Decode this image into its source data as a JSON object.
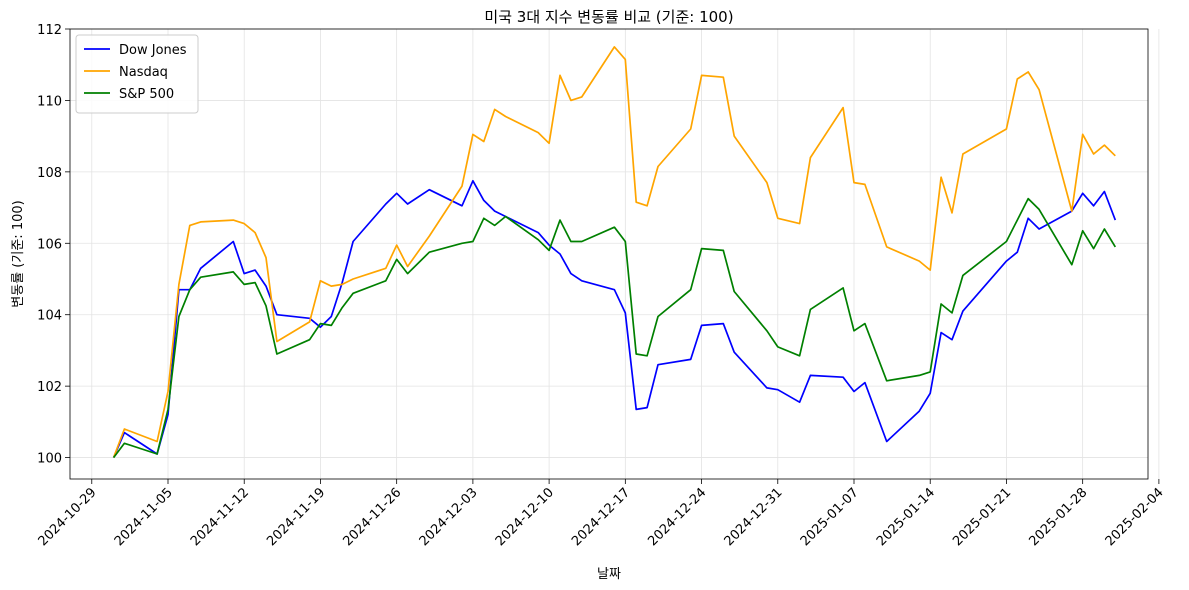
{
  "chart_data": {
    "type": "line",
    "title": "미국 3대 지수 변동률 비교 (기준: 100)",
    "xlabel": "날짜",
    "ylabel": "변동률 (기준: 100)",
    "xlim": [
      "2024-10-27",
      "2025-02-03"
    ],
    "ylim": [
      99.4,
      112
    ],
    "grid": true,
    "legend_position": "top-left",
    "x_ticks": [
      "2024-10-29",
      "2024-11-05",
      "2024-11-12",
      "2024-11-19",
      "2024-11-26",
      "2024-12-03",
      "2024-12-10",
      "2024-12-17",
      "2024-12-24",
      "2024-12-31",
      "2025-01-07",
      "2025-01-14",
      "2025-01-21",
      "2025-01-28",
      "2025-02-04"
    ],
    "y_ticks": [
      100,
      102,
      104,
      106,
      108,
      110,
      112
    ],
    "series": [
      {
        "name": "Dow Jones",
        "color": "#0000ff",
        "points": [
          [
            "2024-10-31",
            100.0
          ],
          [
            "2024-11-01",
            100.7
          ],
          [
            "2024-11-04",
            100.1
          ],
          [
            "2024-11-05",
            101.2
          ],
          [
            "2024-11-06",
            104.7
          ],
          [
            "2024-11-07",
            104.7
          ],
          [
            "2024-11-08",
            105.3
          ],
          [
            "2024-11-11",
            106.05
          ],
          [
            "2024-11-12",
            105.15
          ],
          [
            "2024-11-13",
            105.25
          ],
          [
            "2024-11-14",
            104.8
          ],
          [
            "2024-11-15",
            104.0
          ],
          [
            "2024-11-18",
            103.9
          ],
          [
            "2024-11-19",
            103.65
          ],
          [
            "2024-11-20",
            103.95
          ],
          [
            "2024-11-21",
            104.9
          ],
          [
            "2024-11-22",
            106.05
          ],
          [
            "2024-11-25",
            107.1
          ],
          [
            "2024-11-26",
            107.4
          ],
          [
            "2024-11-27",
            107.1
          ],
          [
            "2024-11-29",
            107.5
          ],
          [
            "2024-12-02",
            107.05
          ],
          [
            "2024-12-03",
            107.75
          ],
          [
            "2024-12-04",
            107.2
          ],
          [
            "2024-12-05",
            106.9
          ],
          [
            "2024-12-06",
            106.75
          ],
          [
            "2024-12-09",
            106.3
          ],
          [
            "2024-12-10",
            105.95
          ],
          [
            "2024-12-11",
            105.7
          ],
          [
            "2024-12-12",
            105.15
          ],
          [
            "2024-12-13",
            104.95
          ],
          [
            "2024-12-16",
            104.7
          ],
          [
            "2024-12-17",
            104.05
          ],
          [
            "2024-12-18",
            101.35
          ],
          [
            "2024-12-19",
            101.4
          ],
          [
            "2024-12-20",
            102.6
          ],
          [
            "2024-12-23",
            102.75
          ],
          [
            "2024-12-24",
            103.7
          ],
          [
            "2024-12-26",
            103.75
          ],
          [
            "2024-12-27",
            102.95
          ],
          [
            "2024-12-30",
            101.95
          ],
          [
            "2024-12-31",
            101.9
          ],
          [
            "2025-01-02",
            101.55
          ],
          [
            "2025-01-03",
            102.3
          ],
          [
            "2025-01-06",
            102.25
          ],
          [
            "2025-01-07",
            101.85
          ],
          [
            "2025-01-08",
            102.1
          ],
          [
            "2025-01-10",
            100.45
          ],
          [
            "2025-01-13",
            101.3
          ],
          [
            "2025-01-14",
            101.8
          ],
          [
            "2025-01-15",
            103.5
          ],
          [
            "2025-01-16",
            103.3
          ],
          [
            "2025-01-17",
            104.1
          ],
          [
            "2025-01-21",
            105.5
          ],
          [
            "2025-01-22",
            105.75
          ],
          [
            "2025-01-23",
            106.7
          ],
          [
            "2025-01-24",
            106.4
          ],
          [
            "2025-01-27",
            106.9
          ],
          [
            "2025-01-28",
            107.4
          ],
          [
            "2025-01-29",
            107.05
          ],
          [
            "2025-01-30",
            107.45
          ],
          [
            "2025-01-31",
            106.65
          ]
        ]
      },
      {
        "name": "Nasdaq",
        "color": "#ffa500",
        "points": [
          [
            "2024-10-31",
            100.0
          ],
          [
            "2024-11-01",
            100.8
          ],
          [
            "2024-11-04",
            100.45
          ],
          [
            "2024-11-05",
            101.85
          ],
          [
            "2024-11-06",
            104.85
          ],
          [
            "2024-11-07",
            106.5
          ],
          [
            "2024-11-08",
            106.6
          ],
          [
            "2024-11-11",
            106.65
          ],
          [
            "2024-11-12",
            106.55
          ],
          [
            "2024-11-13",
            106.3
          ],
          [
            "2024-11-14",
            105.6
          ],
          [
            "2024-11-15",
            103.25
          ],
          [
            "2024-11-18",
            103.8
          ],
          [
            "2024-11-19",
            104.95
          ],
          [
            "2024-11-20",
            104.8
          ],
          [
            "2024-11-21",
            104.85
          ],
          [
            "2024-11-22",
            105.0
          ],
          [
            "2024-11-25",
            105.3
          ],
          [
            "2024-11-26",
            105.95
          ],
          [
            "2024-11-27",
            105.35
          ],
          [
            "2024-11-29",
            106.2
          ],
          [
            "2024-12-02",
            107.6
          ],
          [
            "2024-12-03",
            109.05
          ],
          [
            "2024-12-04",
            108.85
          ],
          [
            "2024-12-05",
            109.75
          ],
          [
            "2024-12-06",
            109.55
          ],
          [
            "2024-12-09",
            109.1
          ],
          [
            "2024-12-10",
            108.8
          ],
          [
            "2024-12-11",
            110.7
          ],
          [
            "2024-12-12",
            110.0
          ],
          [
            "2024-12-13",
            110.1
          ],
          [
            "2024-12-16",
            111.5
          ],
          [
            "2024-12-17",
            111.15
          ],
          [
            "2024-12-18",
            107.15
          ],
          [
            "2024-12-19",
            107.05
          ],
          [
            "2024-12-20",
            108.15
          ],
          [
            "2024-12-23",
            109.2
          ],
          [
            "2024-12-24",
            110.7
          ],
          [
            "2024-12-26",
            110.65
          ],
          [
            "2024-12-27",
            109.0
          ],
          [
            "2024-12-30",
            107.7
          ],
          [
            "2024-12-31",
            106.7
          ],
          [
            "2025-01-02",
            106.55
          ],
          [
            "2025-01-03",
            108.4
          ],
          [
            "2025-01-06",
            109.8
          ],
          [
            "2025-01-07",
            107.7
          ],
          [
            "2025-01-08",
            107.65
          ],
          [
            "2025-01-10",
            105.9
          ],
          [
            "2025-01-13",
            105.5
          ],
          [
            "2025-01-14",
            105.25
          ],
          [
            "2025-01-15",
            107.85
          ],
          [
            "2025-01-16",
            106.85
          ],
          [
            "2025-01-17",
            108.5
          ],
          [
            "2025-01-21",
            109.2
          ],
          [
            "2025-01-22",
            110.6
          ],
          [
            "2025-01-23",
            110.8
          ],
          [
            "2025-01-24",
            110.3
          ],
          [
            "2025-01-27",
            106.9
          ],
          [
            "2025-01-28",
            109.05
          ],
          [
            "2025-01-29",
            108.5
          ],
          [
            "2025-01-30",
            108.75
          ],
          [
            "2025-01-31",
            108.45
          ]
        ]
      },
      {
        "name": "S&P 500",
        "color": "#008000",
        "points": [
          [
            "2024-10-31",
            100.0
          ],
          [
            "2024-11-01",
            100.4
          ],
          [
            "2024-11-04",
            100.1
          ],
          [
            "2024-11-05",
            101.35
          ],
          [
            "2024-11-06",
            103.95
          ],
          [
            "2024-11-07",
            104.7
          ],
          [
            "2024-11-08",
            105.05
          ],
          [
            "2024-11-11",
            105.2
          ],
          [
            "2024-11-12",
            104.85
          ],
          [
            "2024-11-13",
            104.9
          ],
          [
            "2024-11-14",
            104.25
          ],
          [
            "2024-11-15",
            102.9
          ],
          [
            "2024-11-18",
            103.3
          ],
          [
            "2024-11-19",
            103.75
          ],
          [
            "2024-11-20",
            103.7
          ],
          [
            "2024-11-21",
            104.2
          ],
          [
            "2024-11-22",
            104.6
          ],
          [
            "2024-11-25",
            104.95
          ],
          [
            "2024-11-26",
            105.55
          ],
          [
            "2024-11-27",
            105.15
          ],
          [
            "2024-11-29",
            105.75
          ],
          [
            "2024-12-02",
            106.0
          ],
          [
            "2024-12-03",
            106.05
          ],
          [
            "2024-12-04",
            106.7
          ],
          [
            "2024-12-05",
            106.5
          ],
          [
            "2024-12-06",
            106.75
          ],
          [
            "2024-12-09",
            106.1
          ],
          [
            "2024-12-10",
            105.8
          ],
          [
            "2024-12-11",
            106.65
          ],
          [
            "2024-12-12",
            106.05
          ],
          [
            "2024-12-13",
            106.05
          ],
          [
            "2024-12-16",
            106.45
          ],
          [
            "2024-12-17",
            106.05
          ],
          [
            "2024-12-18",
            102.9
          ],
          [
            "2024-12-19",
            102.85
          ],
          [
            "2024-12-20",
            103.95
          ],
          [
            "2024-12-23",
            104.7
          ],
          [
            "2024-12-24",
            105.85
          ],
          [
            "2024-12-26",
            105.8
          ],
          [
            "2024-12-27",
            104.65
          ],
          [
            "2024-12-30",
            103.55
          ],
          [
            "2024-12-31",
            103.1
          ],
          [
            "2025-01-02",
            102.85
          ],
          [
            "2025-01-03",
            104.15
          ],
          [
            "2025-01-06",
            104.75
          ],
          [
            "2025-01-07",
            103.55
          ],
          [
            "2025-01-08",
            103.75
          ],
          [
            "2025-01-10",
            102.15
          ],
          [
            "2025-01-13",
            102.3
          ],
          [
            "2025-01-14",
            102.4
          ],
          [
            "2025-01-15",
            104.3
          ],
          [
            "2025-01-16",
            104.05
          ],
          [
            "2025-01-17",
            105.1
          ],
          [
            "2025-01-21",
            106.05
          ],
          [
            "2025-01-22",
            106.65
          ],
          [
            "2025-01-23",
            107.25
          ],
          [
            "2025-01-24",
            106.95
          ],
          [
            "2025-01-27",
            105.4
          ],
          [
            "2025-01-28",
            106.35
          ],
          [
            "2025-01-29",
            105.85
          ],
          [
            "2025-01-30",
            106.4
          ],
          [
            "2025-01-31",
            105.9
          ]
        ]
      }
    ]
  }
}
